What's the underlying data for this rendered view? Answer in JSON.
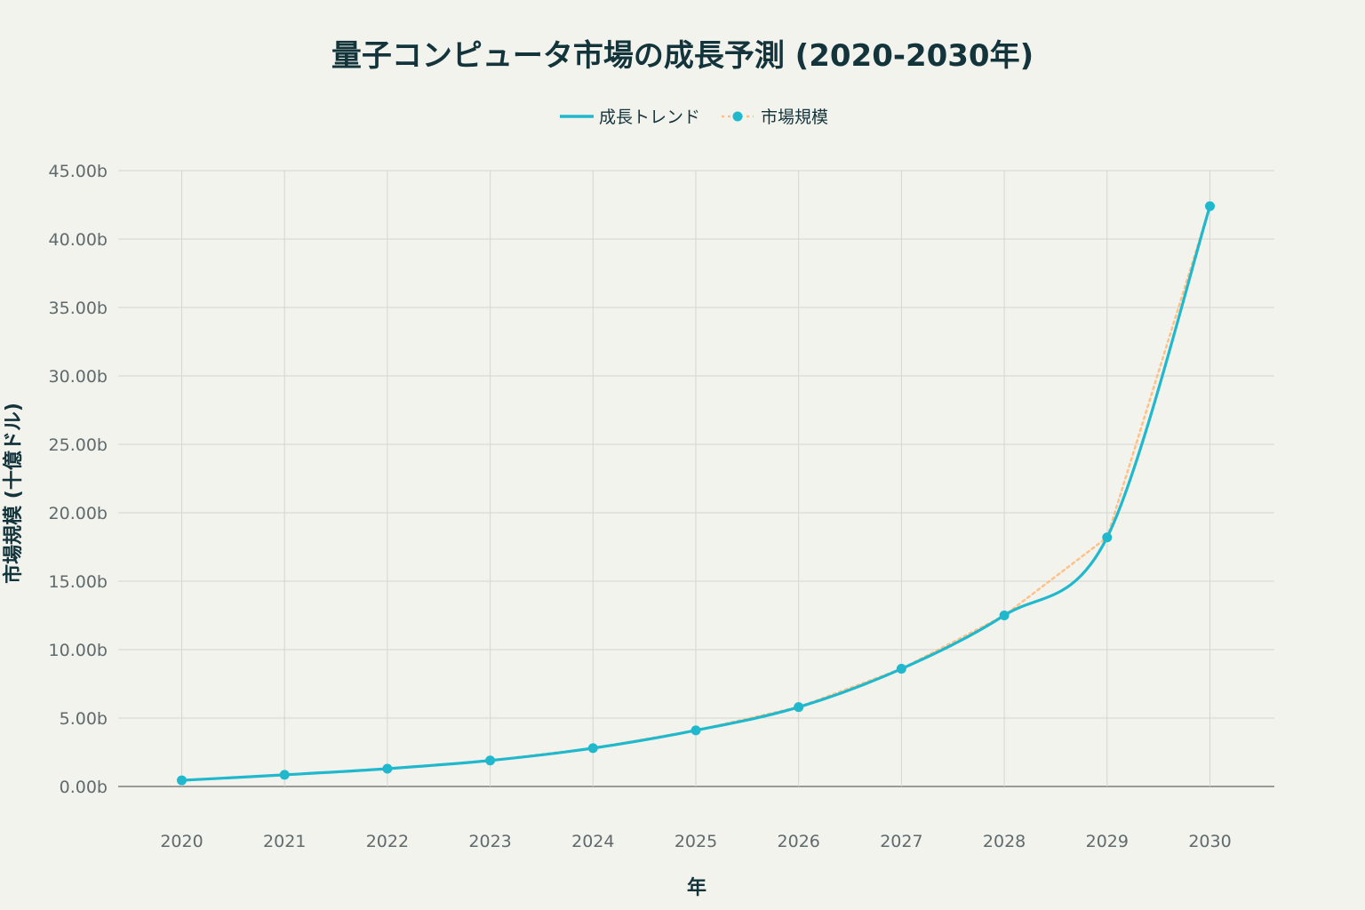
{
  "chart_data": {
    "type": "line",
    "title": "量子コンピュータ市場の成長予測 (2020-2030年)",
    "xlabel": "年",
    "ylabel": "市場規模 (十億ドル)",
    "x": [
      2020,
      2021,
      2022,
      2023,
      2024,
      2025,
      2026,
      2027,
      2028,
      2029,
      2030
    ],
    "xlim": [
      2019.4,
      2030.6
    ],
    "ylim": [
      -2.5,
      45
    ],
    "y_ticks": [
      0,
      5,
      10,
      15,
      20,
      25,
      30,
      35,
      40,
      45
    ],
    "y_tick_suffix": "b",
    "grid": true,
    "legend_position": "top-center",
    "series": [
      {
        "name": "成長トレンド",
        "style": "smooth-solid",
        "color": "#1fb8cd",
        "values": [
          0.45,
          0.85,
          1.3,
          1.9,
          2.8,
          4.1,
          5.8,
          8.6,
          12.5,
          18.2,
          42.4
        ]
      },
      {
        "name": "市場規模",
        "style": "dotted-markers",
        "line_color": "#ffc185",
        "marker_color": "#1fb8cd",
        "values": [
          0.45,
          0.85,
          1.3,
          1.9,
          2.8,
          4.1,
          5.8,
          8.6,
          12.5,
          18.2,
          42.4
        ]
      }
    ]
  }
}
